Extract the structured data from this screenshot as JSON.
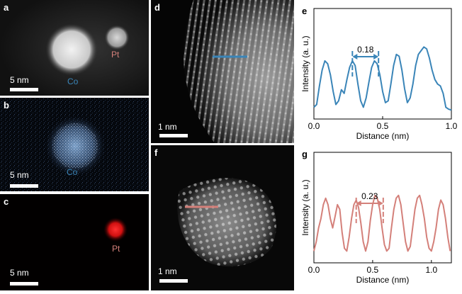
{
  "panels": {
    "a": {
      "label": "a",
      "scalebar": "5 nm",
      "co_label": "Co",
      "pt_label": "Pt"
    },
    "b": {
      "label": "b",
      "scalebar": "5 nm",
      "co_label": "Co"
    },
    "c": {
      "label": "c",
      "scalebar": "5 nm",
      "pt_label": "Pt"
    },
    "d": {
      "label": "d",
      "scalebar": "1 nm"
    },
    "e": {
      "label": "e"
    },
    "f": {
      "label": "f",
      "scalebar": "1 nm"
    },
    "g": {
      "label": "g"
    }
  },
  "colors": {
    "co": "#3a85b8",
    "pt": "#d4807a",
    "pt_map": "#ff2020",
    "co_map": "#8fb9e6"
  },
  "chart_data": [
    {
      "panel": "e",
      "type": "line",
      "xlabel": "Distance (nm)",
      "ylabel": "Intensity (a. u.)",
      "xlim": [
        0,
        1.0
      ],
      "xticks": [
        "0.0",
        "0.5",
        "1.0"
      ],
      "annotation": "0.18",
      "spacing_markers": [
        0.28,
        0.47
      ],
      "color": "#3a85b8",
      "x": [
        0.0,
        0.02,
        0.04,
        0.06,
        0.08,
        0.1,
        0.12,
        0.14,
        0.16,
        0.18,
        0.2,
        0.22,
        0.24,
        0.26,
        0.28,
        0.3,
        0.32,
        0.34,
        0.36,
        0.38,
        0.4,
        0.42,
        0.44,
        0.46,
        0.48,
        0.5,
        0.52,
        0.54,
        0.56,
        0.58,
        0.6,
        0.62,
        0.64,
        0.66,
        0.68,
        0.7,
        0.72,
        0.74,
        0.76,
        0.78,
        0.8,
        0.82,
        0.84,
        0.86,
        0.88,
        0.9,
        0.92,
        0.94,
        0.96,
        0.98,
        1.0
      ],
      "y": [
        0.05,
        0.08,
        0.28,
        0.45,
        0.55,
        0.52,
        0.4,
        0.22,
        0.08,
        0.12,
        0.24,
        0.2,
        0.35,
        0.48,
        0.55,
        0.5,
        0.3,
        0.12,
        0.05,
        0.15,
        0.32,
        0.48,
        0.55,
        0.52,
        0.4,
        0.22,
        0.1,
        0.12,
        0.3,
        0.5,
        0.62,
        0.6,
        0.45,
        0.25,
        0.1,
        0.15,
        0.3,
        0.5,
        0.62,
        0.66,
        0.7,
        0.68,
        0.58,
        0.45,
        0.35,
        0.3,
        0.28,
        0.2,
        0.05,
        0.03,
        0.02
      ]
    },
    {
      "panel": "g",
      "type": "line",
      "xlabel": "Distance (nm)",
      "ylabel": "Intensity (a. u.)",
      "xlim": [
        0,
        1.17
      ],
      "xticks": [
        "0.0",
        "0.5",
        "1.0"
      ],
      "annotation": "0.23",
      "spacing_markers": [
        0.36,
        0.59
      ],
      "color": "#d4807a",
      "x": [
        0.0,
        0.02,
        0.04,
        0.06,
        0.08,
        0.1,
        0.12,
        0.14,
        0.16,
        0.18,
        0.2,
        0.22,
        0.24,
        0.26,
        0.28,
        0.3,
        0.32,
        0.34,
        0.36,
        0.38,
        0.4,
        0.42,
        0.44,
        0.46,
        0.48,
        0.5,
        0.52,
        0.54,
        0.56,
        0.58,
        0.6,
        0.62,
        0.64,
        0.66,
        0.68,
        0.7,
        0.72,
        0.74,
        0.76,
        0.78,
        0.8,
        0.82,
        0.84,
        0.86,
        0.88,
        0.9,
        0.92,
        0.94,
        0.96,
        0.98,
        1.0,
        1.02,
        1.04,
        1.06,
        1.08,
        1.1,
        1.12,
        1.14,
        1.16
      ],
      "y": [
        0.05,
        0.15,
        0.3,
        0.4,
        0.55,
        0.62,
        0.55,
        0.4,
        0.3,
        0.42,
        0.55,
        0.5,
        0.25,
        0.08,
        0.05,
        0.2,
        0.4,
        0.55,
        0.6,
        0.52,
        0.35,
        0.15,
        0.05,
        0.15,
        0.38,
        0.55,
        0.65,
        0.62,
        0.5,
        0.3,
        0.12,
        0.05,
        0.08,
        0.3,
        0.5,
        0.62,
        0.65,
        0.55,
        0.35,
        0.15,
        0.05,
        0.1,
        0.3,
        0.5,
        0.62,
        0.65,
        0.55,
        0.4,
        0.2,
        0.08,
        0.05,
        0.15,
        0.3,
        0.5,
        0.6,
        0.55,
        0.4,
        0.2,
        0.05
      ]
    }
  ]
}
